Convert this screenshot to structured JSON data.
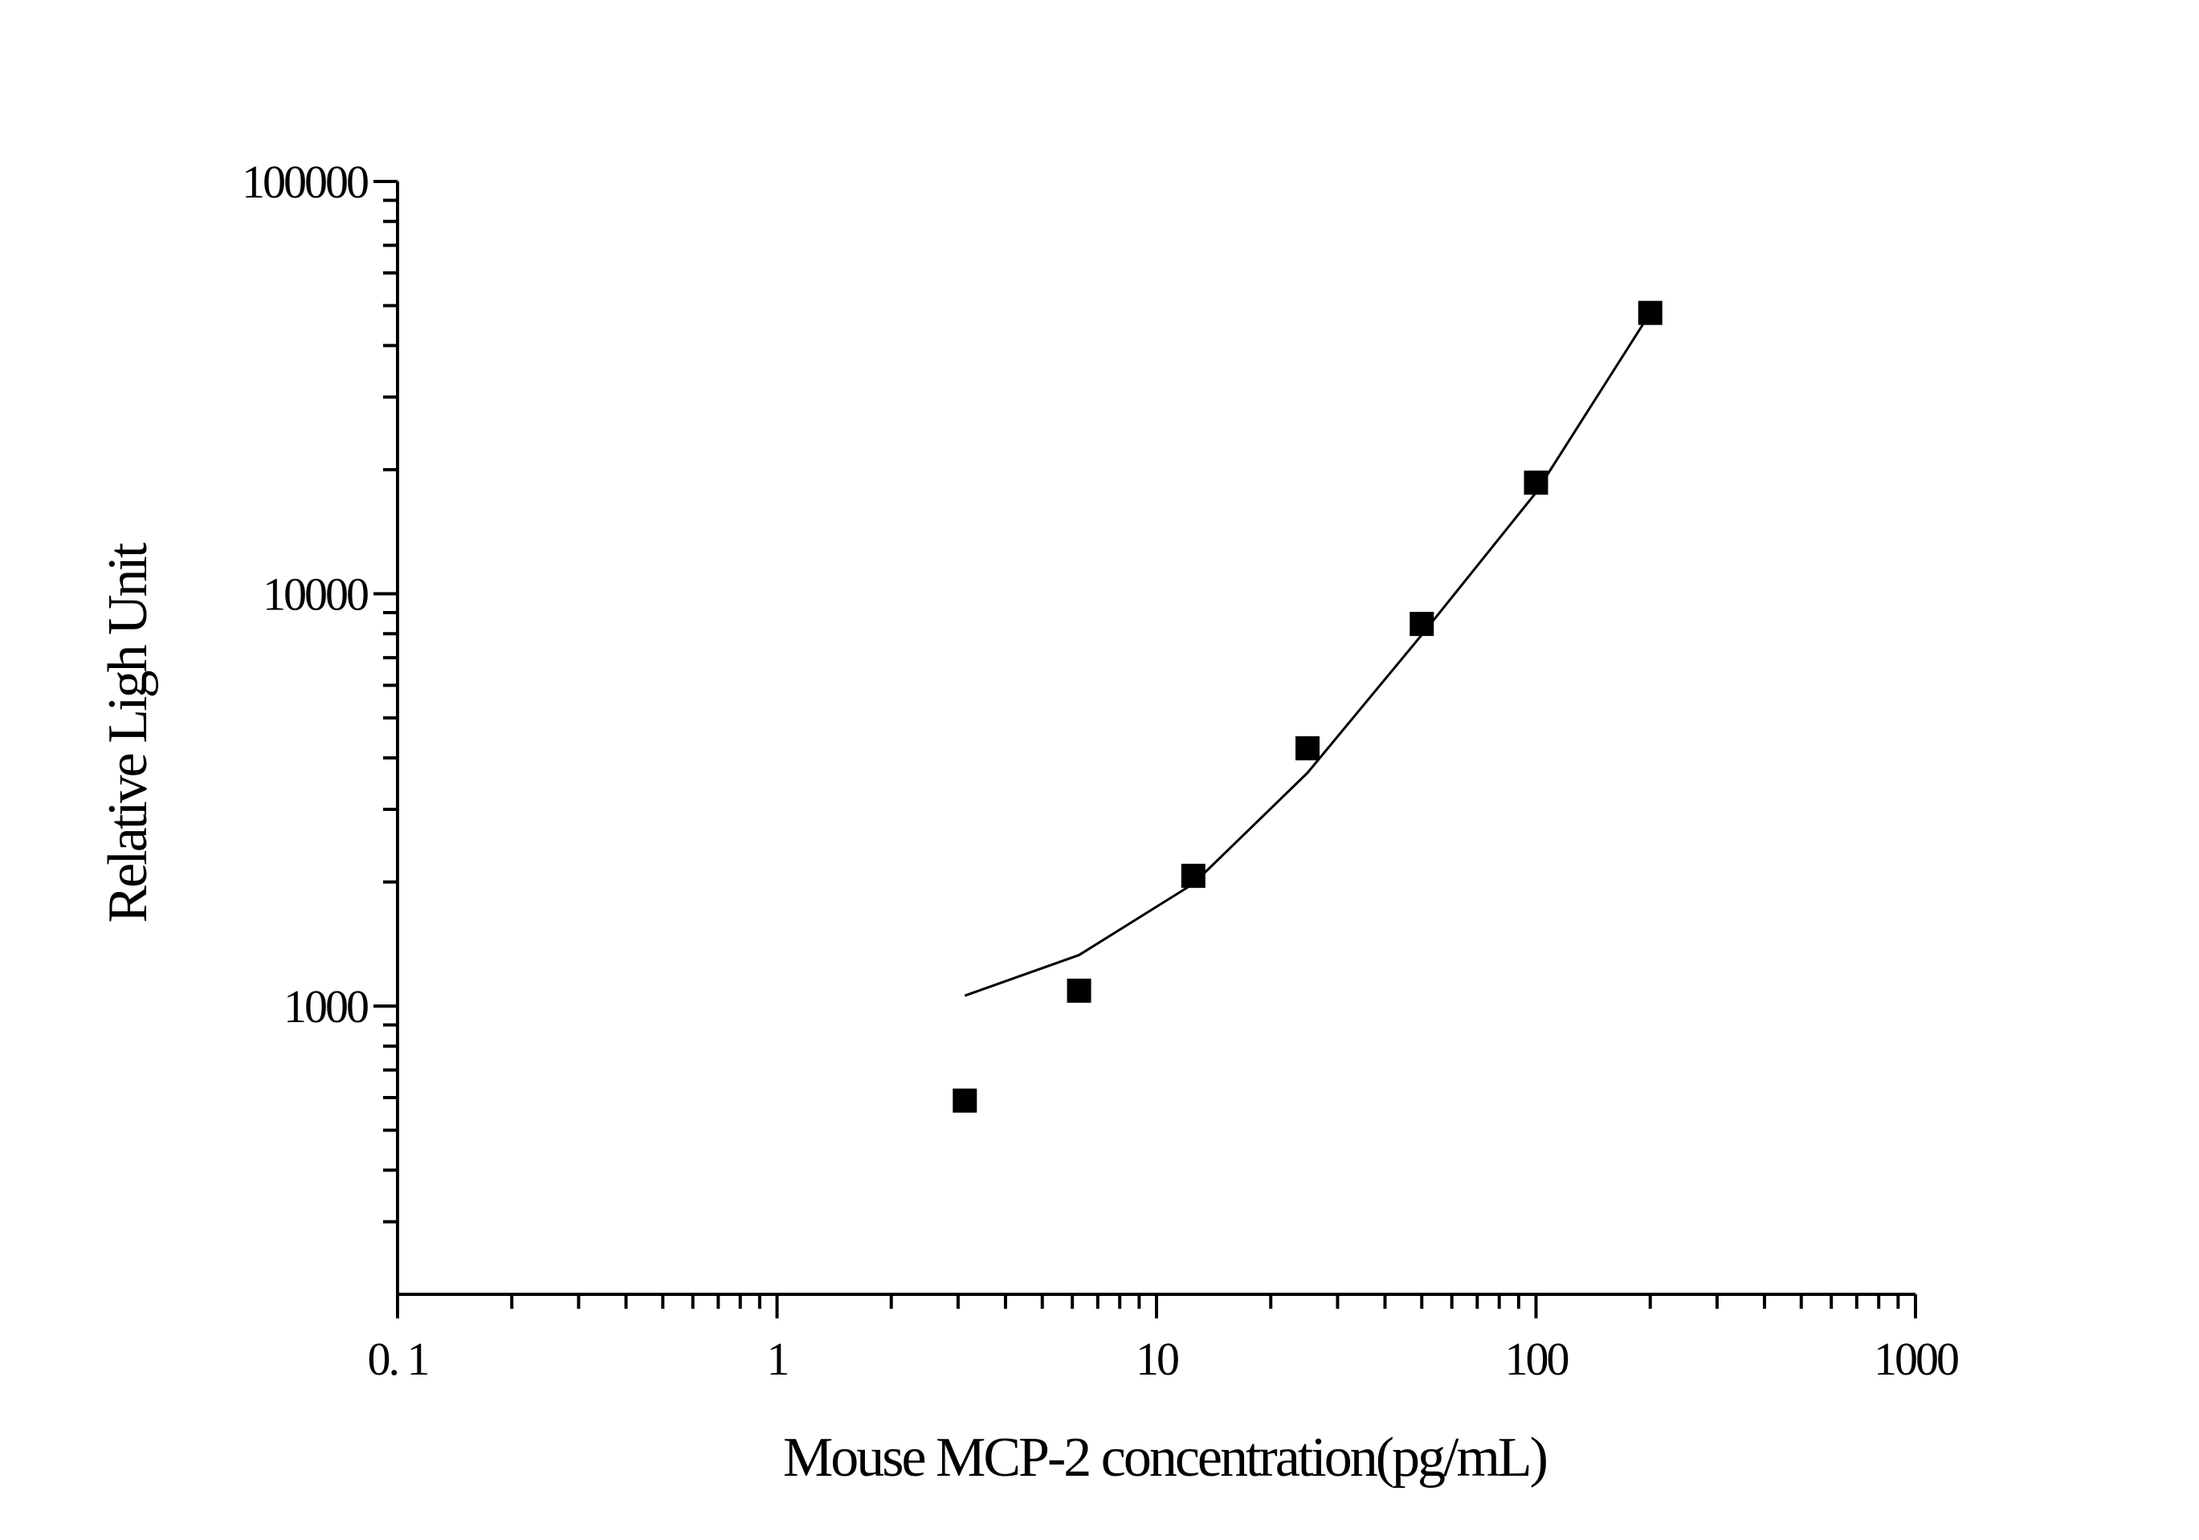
{
  "chart_data": {
    "type": "scatter",
    "title": "",
    "xlabel": "Mouse MCP-2  concentration(pg/mL)",
    "ylabel": "Relative Ligh Unit",
    "x_scale": "log",
    "y_scale": "log",
    "xlim": [
      0.1,
      1000
    ],
    "ylim": [
      200,
      100000
    ],
    "x_ticks": [
      {
        "value": 0.1,
        "label": "0. 1"
      },
      {
        "value": 1,
        "label": "1"
      },
      {
        "value": 10,
        "label": "10"
      },
      {
        "value": 100,
        "label": "100"
      },
      {
        "value": 1000,
        "label": "1000"
      }
    ],
    "y_ticks": [
      {
        "value": 1000,
        "label": "1000"
      },
      {
        "value": 10000,
        "label": "10000"
      },
      {
        "value": 100000,
        "label": "100000"
      }
    ],
    "grid": false,
    "legend": "none",
    "series": [
      {
        "type": "scatter",
        "marker": "square",
        "color": "#000000",
        "x": [
          3.125,
          6.25,
          12.5,
          25,
          50,
          100,
          200
        ],
        "y": [
          590,
          1090,
          2070,
          4220,
          8450,
          18600,
          48000
        ]
      },
      {
        "type": "line",
        "color": "#000000",
        "x": [
          3.125,
          6.25,
          12.5,
          25,
          50,
          100,
          200
        ],
        "y": [
          1060,
          1330,
          1980,
          3680,
          7950,
          17600,
          48000
        ]
      }
    ]
  }
}
